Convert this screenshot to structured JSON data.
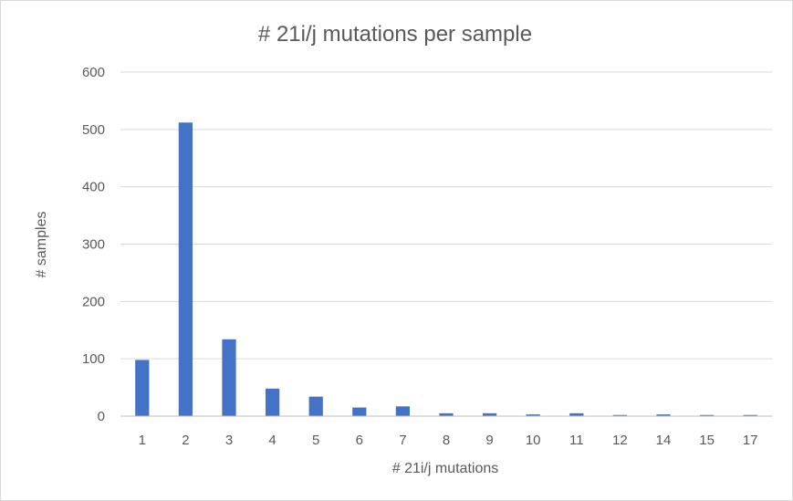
{
  "chart_data": {
    "type": "bar",
    "title": "# 21i/j mutations per sample",
    "xlabel": "# 21i/j mutations",
    "ylabel": "# samples",
    "categories": [
      "1",
      "2",
      "3",
      "4",
      "5",
      "6",
      "7",
      "8",
      "9",
      "10",
      "11",
      "12",
      "14",
      "15",
      "17"
    ],
    "values": [
      98,
      512,
      134,
      48,
      34,
      15,
      17,
      5,
      5,
      3,
      5,
      2,
      3,
      2,
      2
    ],
    "ylim": [
      0,
      600
    ],
    "yticks": [
      0,
      100,
      200,
      300,
      400,
      500,
      600
    ],
    "grid": true,
    "legend": "none",
    "bar_color": "#4472c4"
  }
}
